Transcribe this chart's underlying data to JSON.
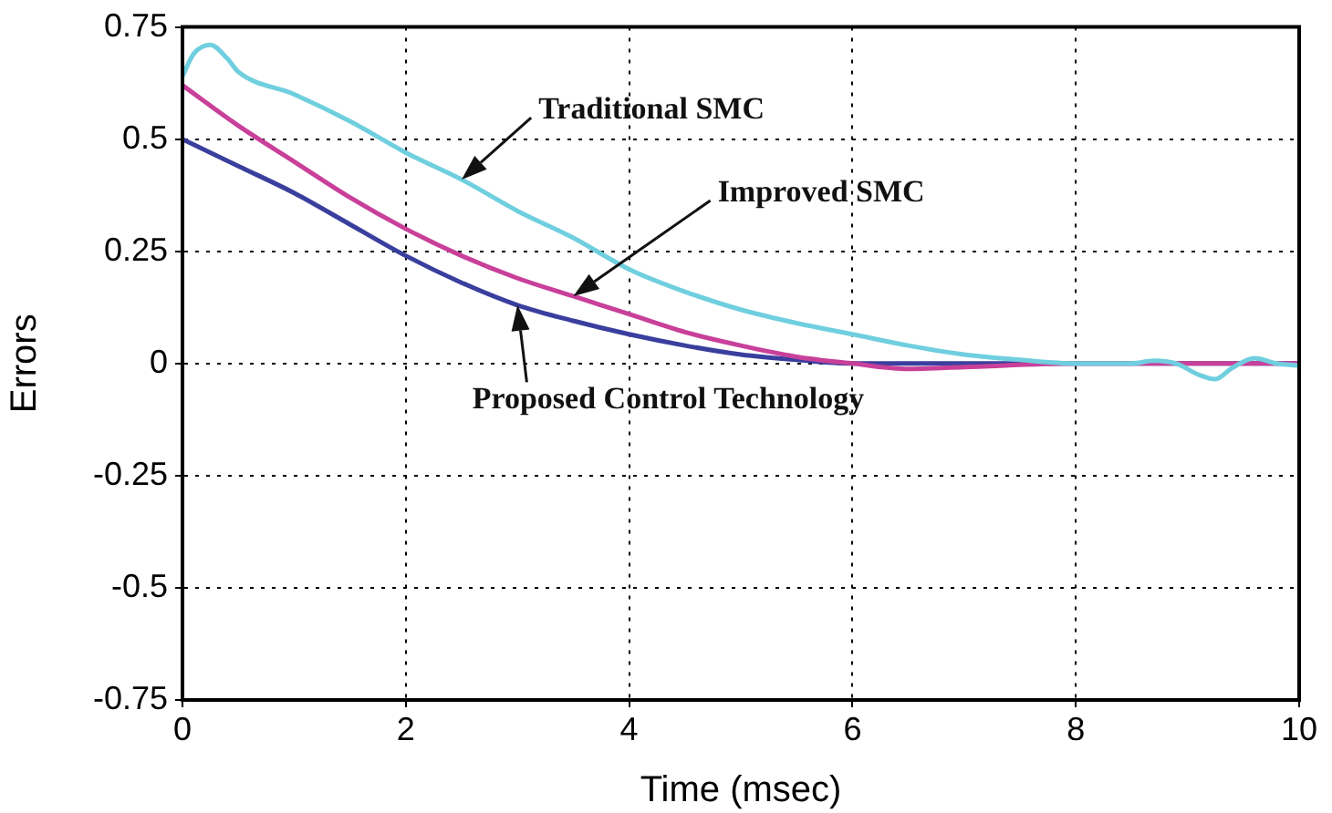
{
  "chart_data": {
    "type": "line",
    "xlabel": "Time (msec)",
    "ylabel": "Errors",
    "xlim": [
      0,
      10
    ],
    "xticks": [
      0,
      2,
      4,
      6,
      8,
      10
    ],
    "ylim": [
      -0.75,
      0.75
    ],
    "yticks": [
      -0.75,
      -0.5,
      -0.25,
      0,
      0.25,
      0.5,
      0.75
    ],
    "grid": true,
    "legend": false,
    "marker": "none",
    "line_style": "solid",
    "series": [
      {
        "color": "#6fcfdf",
        "x": [
          0,
          0.1,
          0.25,
          0.4,
          0.5,
          1,
          1.5,
          2,
          2.5,
          3,
          3.5,
          4,
          4.5,
          5,
          5.5,
          6,
          6.5,
          7,
          7.5,
          8,
          8.5,
          8.7,
          8.9,
          9.1,
          9.25,
          9.4,
          9.6,
          9.8,
          10
        ],
        "values": [
          0.64,
          0.69,
          0.71,
          0.68,
          0.65,
          0.6,
          0.54,
          0.47,
          0.41,
          0.34,
          0.28,
          0.21,
          0.16,
          0.12,
          0.09,
          0.065,
          0.04,
          0.02,
          0.008,
          0,
          0,
          0.006,
          0,
          -0.025,
          -0.035,
          -0.01,
          0.012,
          0,
          -0.005
        ]
      },
      {
        "color": "#c8409a",
        "x": [
          0,
          0.5,
          1,
          1.5,
          2,
          2.5,
          3,
          3.5,
          4,
          4.5,
          5,
          5.5,
          6,
          6.5,
          7,
          8,
          9,
          10
        ],
        "values": [
          0.62,
          0.53,
          0.45,
          0.37,
          0.3,
          0.24,
          0.19,
          0.15,
          0.11,
          0.07,
          0.04,
          0.015,
          0,
          -0.012,
          -0.008,
          0,
          0,
          0
        ]
      },
      {
        "color": "#3a3f9e",
        "x": [
          0,
          0.5,
          1,
          1.5,
          2,
          2.5,
          3,
          3.5,
          4,
          4.5,
          5,
          5.5,
          6,
          7,
          8,
          9,
          10
        ],
        "values": [
          0.5,
          0.44,
          0.38,
          0.31,
          0.24,
          0.18,
          0.13,
          0.095,
          0.065,
          0.04,
          0.02,
          0.008,
          0,
          0,
          0,
          0,
          0
        ]
      }
    ],
    "annotations": [
      "Traditional SMC",
      "Improved SMC",
      "Proposed Control Technology"
    ]
  }
}
